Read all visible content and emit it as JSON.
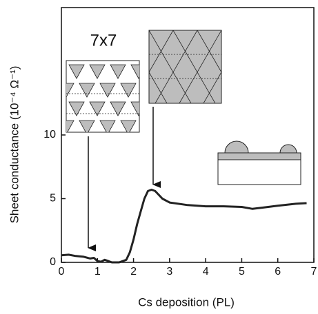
{
  "chart_data": {
    "type": "line",
    "x_label": "Cs deposition (PL)",
    "y_label": "Sheet conductance (10⁻⁴ Ω⁻¹)",
    "annotation": "7x7",
    "x": [
      0,
      0.2,
      0.4,
      0.6,
      0.8,
      0.9,
      1.0,
      1.1,
      1.2,
      1.3,
      1.4,
      1.6,
      1.8,
      1.9,
      2.0,
      2.1,
      2.2,
      2.3,
      2.4,
      2.5,
      2.6,
      2.8,
      3.0,
      3.5,
      4.0,
      4.5,
      5.0,
      5.3,
      5.6,
      6.0,
      6.5,
      6.8
    ],
    "series": [
      {
        "color": "#222222",
        "values": [
          0.55,
          0.6,
          0.5,
          0.45,
          0.3,
          0.35,
          0.1,
          0.05,
          0.2,
          0.1,
          0.0,
          0.0,
          0.2,
          0.8,
          1.8,
          3.0,
          4.0,
          5.0,
          5.6,
          5.7,
          5.6,
          5.0,
          4.7,
          4.5,
          4.4,
          4.4,
          4.35,
          4.2,
          4.3,
          4.45,
          4.6,
          4.65
        ]
      }
    ],
    "xlim": [
      0,
      7
    ],
    "xticks": [
      0,
      1,
      2,
      3,
      4,
      5,
      6,
      7
    ],
    "ylim": [
      0,
      20
    ],
    "yticks": [
      0,
      5,
      10
    ]
  }
}
